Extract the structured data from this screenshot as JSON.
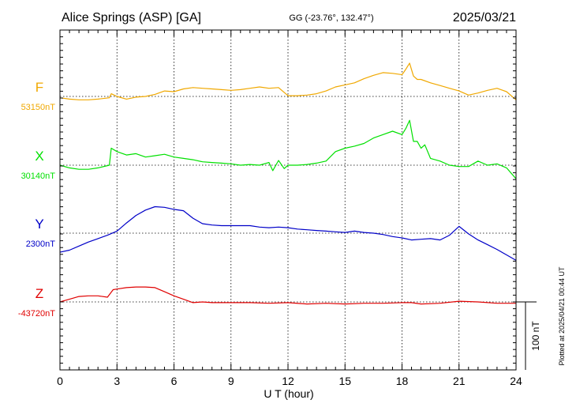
{
  "header": {
    "station": "Alice Springs (ASP)  [GA]",
    "coords": "GG (-23.76°, 132.47°)",
    "date": "2025/03/21"
  },
  "footnote": "Plotted at 2025/04/21 00:44 UT",
  "colors": {
    "F": "#f0a800",
    "X": "#00e000",
    "Y": "#0000c8",
    "Z": "#e00000",
    "axis": "#000000"
  },
  "chart_data": {
    "type": "line",
    "xlabel": "U T (hour)",
    "xlim": [
      0,
      24
    ],
    "xticks": [
      0,
      3,
      6,
      9,
      12,
      15,
      18,
      21,
      24
    ],
    "xtick_labels": [
      "0",
      "3",
      "6",
      "9",
      "12",
      "15",
      "18",
      "21",
      "24"
    ],
    "grid": true,
    "scale_bar": {
      "value": 100,
      "label": "100 nT"
    },
    "series": [
      {
        "name": "F",
        "baseline_label": "53150nT",
        "color": "#f0a800",
        "x": [
          0,
          0.5,
          1,
          1.5,
          2,
          2.6,
          2.7,
          3,
          3.5,
          4,
          4.5,
          5,
          5.5,
          6,
          6.5,
          7,
          7.5,
          8,
          8.5,
          9,
          9.5,
          10,
          10.5,
          11,
          11.5,
          12,
          12.5,
          13,
          13.5,
          14,
          14.5,
          15,
          15.5,
          16,
          16.5,
          17,
          17.5,
          18,
          18.2,
          18.4,
          18.6,
          18.8,
          19,
          19.5,
          20,
          20.5,
          21,
          21.5,
          22,
          22.5,
          23,
          23.5,
          24
        ],
        "y": [
          53148,
          53146,
          53145,
          53145,
          53146,
          53148,
          53154,
          53150,
          53146,
          53149,
          53150,
          53153,
          53158,
          53157,
          53161,
          53163,
          53162,
          53161,
          53160,
          53159,
          53160,
          53162,
          53164,
          53162,
          53163,
          53151,
          53151,
          53152,
          53154,
          53158,
          53164,
          53167,
          53170,
          53176,
          53181,
          53185,
          53184,
          53182,
          53190,
          53199,
          53180,
          53175,
          53175,
          53170,
          53166,
          53162,
          53158,
          53152,
          53155,
          53159,
          53162,
          53157,
          53145
        ]
      },
      {
        "name": "X",
        "baseline_label": "30140nT",
        "color": "#00e000",
        "x": [
          0,
          0.5,
          1,
          1.5,
          2,
          2.6,
          2.7,
          3,
          3.5,
          4,
          4.5,
          5,
          5.5,
          6,
          6.5,
          7,
          7.5,
          8,
          8.5,
          9,
          9.5,
          10,
          10.5,
          11,
          11.2,
          11.5,
          11.8,
          12,
          12.5,
          13,
          13.5,
          14,
          14.5,
          15,
          15.5,
          16,
          16.5,
          17,
          17.5,
          18,
          18.2,
          18.4,
          18.6,
          18.8,
          19,
          19.2,
          19.5,
          20,
          20.5,
          21,
          21.5,
          22,
          22.5,
          23,
          23.5,
          24
        ],
        "y": [
          30140,
          30136,
          30134,
          30134,
          30136,
          30140,
          30165,
          30160,
          30155,
          30157,
          30152,
          30154,
          30156,
          30152,
          30150,
          30148,
          30145,
          30144,
          30143,
          30142,
          30140,
          30141,
          30140,
          30144,
          30132,
          30147,
          30135,
          30140,
          30140,
          30141,
          30143,
          30146,
          30160,
          30165,
          30168,
          30172,
          30180,
          30185,
          30190,
          30185,
          30194,
          30206,
          30175,
          30175,
          30165,
          30170,
          30150,
          30146,
          30140,
          30138,
          30138,
          30146,
          30140,
          30142,
          30136,
          30120
        ]
      },
      {
        "name": "Y",
        "baseline_label": "2300nT",
        "color": "#0000c8",
        "x": [
          0,
          0.5,
          1,
          1.5,
          2,
          2.5,
          3,
          3.5,
          4,
          4.5,
          5,
          5.5,
          6,
          6.5,
          7,
          7.5,
          8,
          8.5,
          9,
          9.5,
          10,
          10.5,
          11,
          11.5,
          12,
          12.5,
          13,
          13.5,
          14,
          14.5,
          15,
          15.5,
          16,
          16.5,
          17,
          17.5,
          18,
          18.5,
          19,
          19.5,
          20,
          20.5,
          21,
          21.5,
          22,
          22.5,
          23,
          23.5,
          24
        ],
        "y": [
          2272,
          2275,
          2281,
          2287,
          2292,
          2297,
          2303,
          2315,
          2326,
          2334,
          2339,
          2338,
          2335,
          2333,
          2322,
          2314,
          2312,
          2311,
          2311,
          2311,
          2311,
          2309,
          2308,
          2309,
          2308,
          2306,
          2305,
          2304,
          2303,
          2302,
          2301,
          2303,
          2301,
          2300,
          2298,
          2295,
          2293,
          2290,
          2291,
          2292,
          2290,
          2297,
          2310,
          2299,
          2290,
          2283,
          2276,
          2268,
          2260
        ]
      },
      {
        "name": "Z",
        "baseline_label": "-43720nT",
        "color": "#e00000",
        "x": [
          0,
          0.5,
          1,
          1.5,
          2,
          2.5,
          2.8,
          3,
          3.5,
          4,
          4.5,
          5,
          5.5,
          6,
          6.5,
          7,
          7.5,
          8,
          9,
          10,
          11,
          12,
          13,
          14,
          15,
          16,
          17,
          18,
          18.5,
          19,
          20,
          21,
          22,
          23,
          24
        ],
        "y": [
          -43720,
          -43716,
          -43712,
          -43711,
          -43711,
          -43713,
          -43702,
          -43701,
          -43699,
          -43698,
          -43698,
          -43699,
          -43705,
          -43711,
          -43716,
          -43721,
          -43720,
          -43721,
          -43721,
          -43721,
          -43722,
          -43721,
          -43723,
          -43722,
          -43723,
          -43722,
          -43722,
          -43721,
          -43721,
          -43723,
          -43722,
          -43719,
          -43720,
          -43722,
          -43722
        ]
      }
    ]
  }
}
